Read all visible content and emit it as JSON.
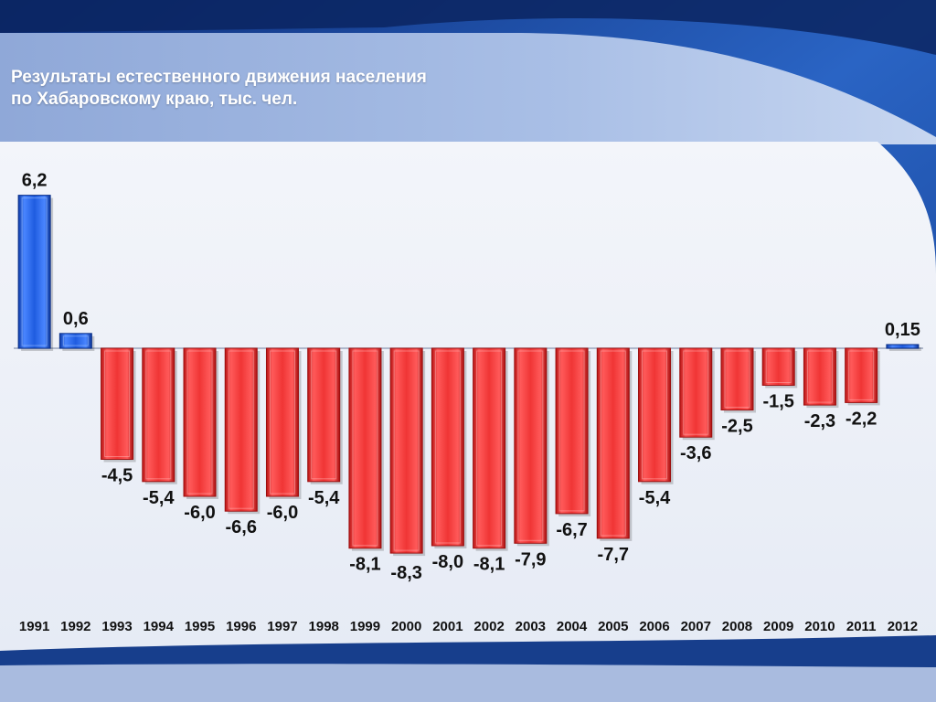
{
  "slide": {
    "title_line1": "Результаты естественного движения населения",
    "title_line2": "по Хабаровскому краю, тыс. чел."
  },
  "colors": {
    "positive": "#1f5ce0",
    "negative": "#ee2f2f",
    "text": "#111111"
  },
  "chart_data": {
    "type": "bar",
    "categories": [
      "1991",
      "1992",
      "1993",
      "1994",
      "1995",
      "1996",
      "1997",
      "1998",
      "1999",
      "2000",
      "2001",
      "2002",
      "2003",
      "2004",
      "2005",
      "2006",
      "2007",
      "2008",
      "2009",
      "2010",
      "2011",
      "2012"
    ],
    "values": [
      6.2,
      0.6,
      -4.5,
      -5.4,
      -6.0,
      -6.6,
      -6.0,
      -5.4,
      -8.1,
      -8.3,
      -8.0,
      -8.1,
      -7.9,
      -6.7,
      -7.7,
      -5.4,
      -3.6,
      -2.5,
      -1.5,
      -2.3,
      -2.2,
      0.15
    ],
    "data_labels": [
      "6,2",
      "0,6",
      "-4,5",
      "-5,4",
      "-6,0",
      "-6,6",
      "-6,0",
      "-5,4",
      "-8,1",
      "-8,3",
      "-8,0",
      "-8,1",
      "-7,9",
      "-6,7",
      "-7,7",
      "-5,4",
      "-3,6",
      "-2,5",
      "-1,5",
      "-2,3",
      "-2,2",
      "0,15"
    ],
    "title": "Результаты естественного движения населения по Хабаровскому краю, тыс. чел.",
    "xlabel": "",
    "ylabel": "",
    "grid": false,
    "legend": "none"
  }
}
